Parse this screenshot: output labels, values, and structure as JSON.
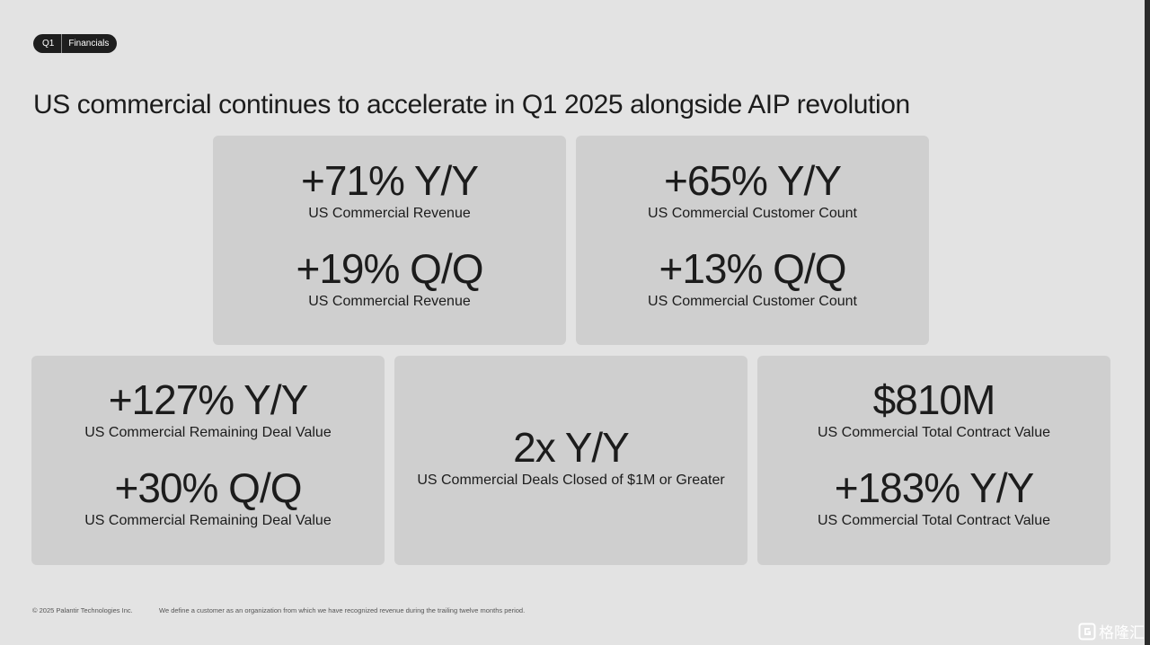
{
  "badge": {
    "period": "Q1",
    "section": "Financials"
  },
  "title": "US commercial continues to accelerate in Q1 2025 alongside AIP revolution",
  "cards": [
    {
      "metrics": [
        {
          "value": "+71% Y/Y",
          "label": "US Commercial Revenue"
        },
        {
          "value": "+19% Q/Q",
          "label": "US Commercial Revenue"
        }
      ]
    },
    {
      "metrics": [
        {
          "value": "+65% Y/Y",
          "label": "US Commercial Customer Count"
        },
        {
          "value": "+13% Q/Q",
          "label": "US Commercial Customer Count"
        }
      ]
    },
    {
      "metrics": [
        {
          "value": "+127% Y/Y",
          "label": "US Commercial Remaining Deal Value"
        },
        {
          "value": "+30% Q/Q",
          "label": "US Commercial Remaining Deal Value"
        }
      ]
    },
    {
      "metrics": [
        {
          "value": "2x Y/Y",
          "label": "US Commercial Deals Closed of $1M or Greater"
        }
      ]
    },
    {
      "metrics": [
        {
          "value": "$810M",
          "label": "US Commercial Total Contract Value"
        },
        {
          "value": "+183% Y/Y",
          "label": "US Commercial Total Contract Value"
        }
      ]
    }
  ],
  "footer": {
    "copyright": "© 2025 Palantir Technologies Inc.",
    "note": "We define a customer as an organization from which we have recognized revenue during the trailing twelve months period."
  },
  "watermark": {
    "text": "格隆汇"
  },
  "colors": {
    "background": "#e3e3e3",
    "card": "#cfcfcf",
    "text": "#1c1c1c",
    "badge": "#1e1e1e"
  }
}
